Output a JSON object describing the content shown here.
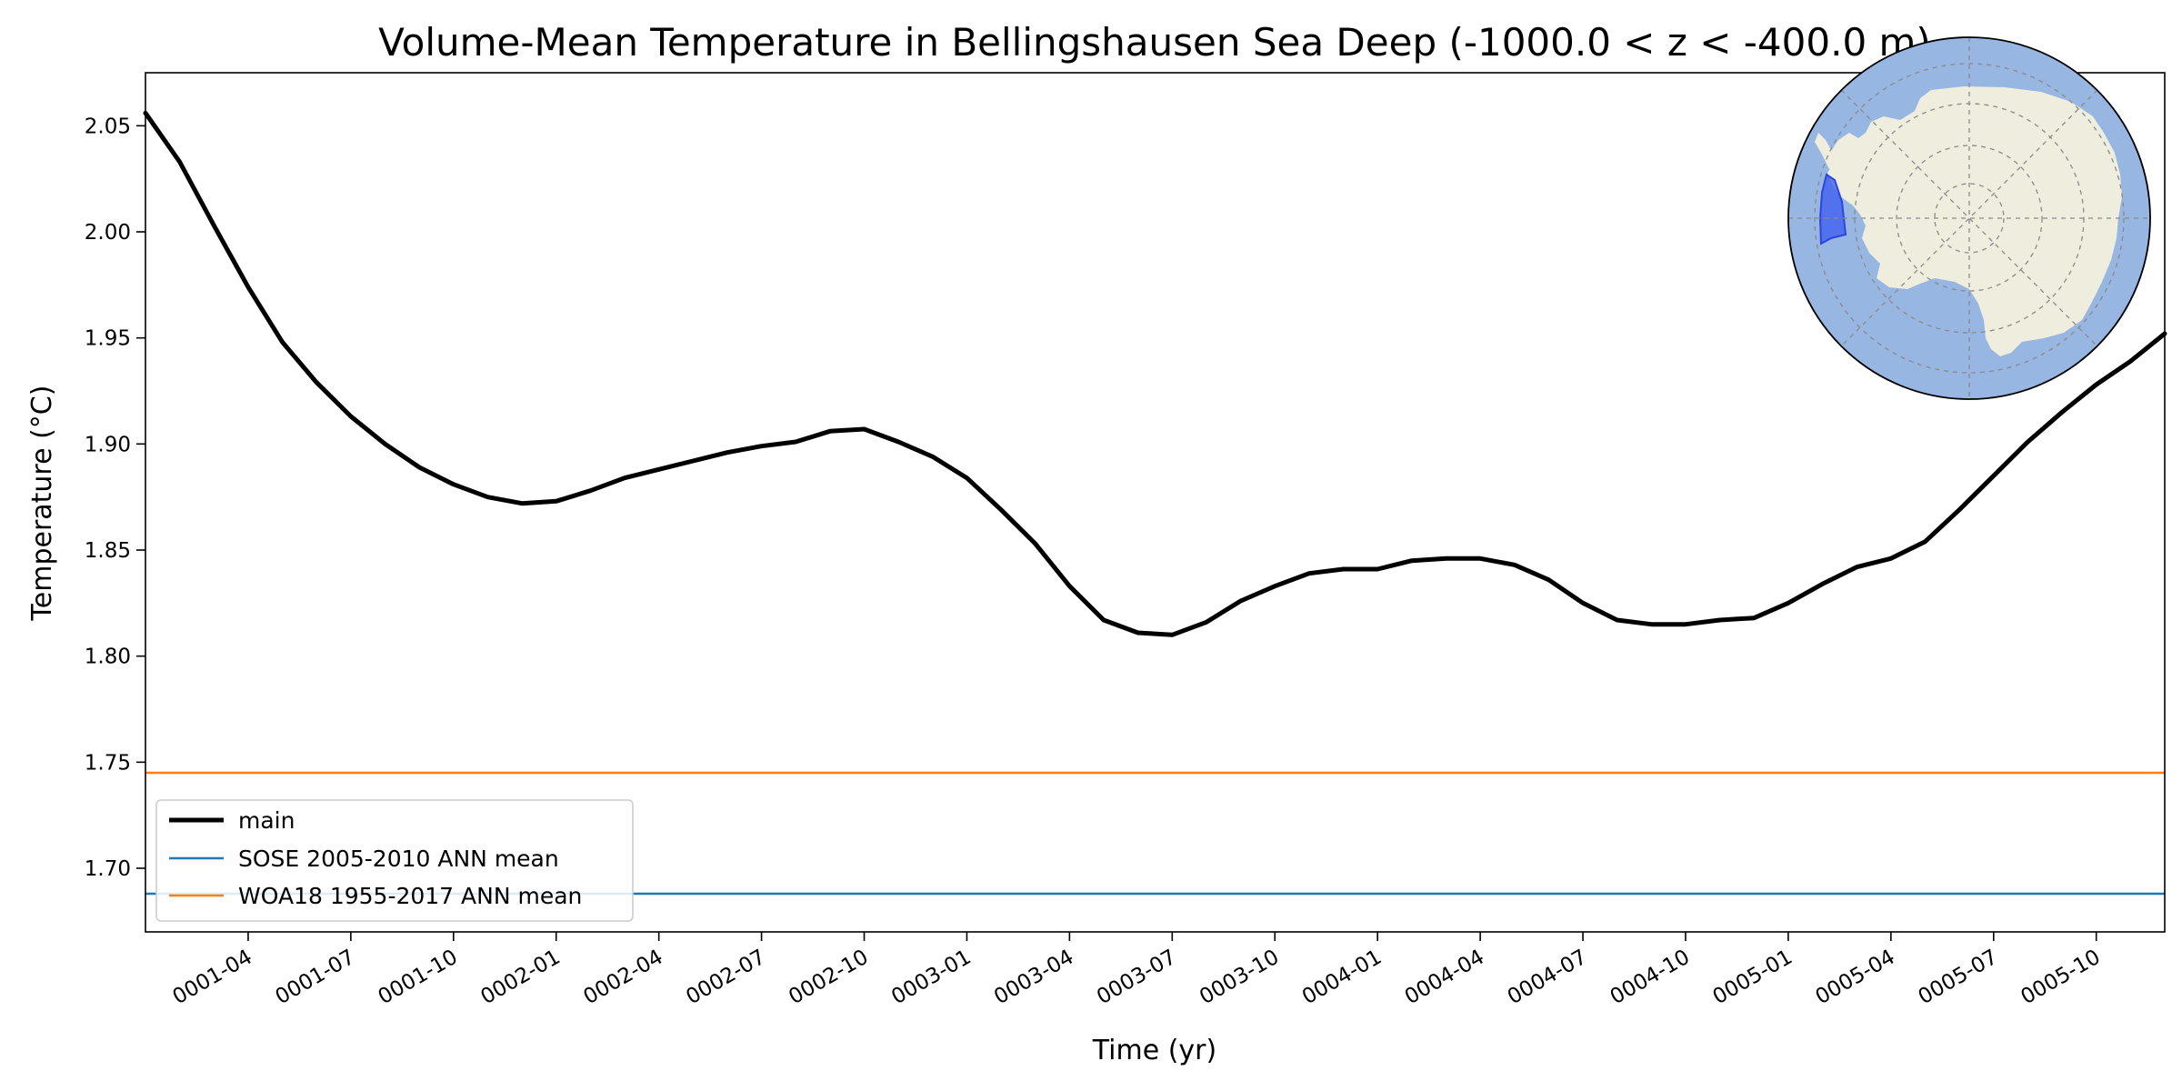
{
  "chart_data": {
    "type": "line",
    "title": "Volume-Mean Temperature in Bellingshausen Sea Deep (-1000.0 < z < -400.0 m)",
    "xlabel": "Time (yr)",
    "ylabel": "Temperature ($^\\circ$C)",
    "ylabel_display": "Temperature (°C)",
    "ylim": [
      1.67,
      2.075
    ],
    "xlim_months": [
      0.0,
      59.0
    ],
    "x_tick_labels": [
      "0001-04",
      "0001-07",
      "0001-10",
      "0002-01",
      "0002-04",
      "0002-07",
      "0002-10",
      "0003-01",
      "0003-04",
      "0003-07",
      "0003-10",
      "0004-01",
      "0004-04",
      "0004-07",
      "0004-10",
      "0005-01",
      "0005-04",
      "0005-07",
      "0005-10"
    ],
    "x_tick_months": [
      3,
      6,
      9,
      12,
      15,
      18,
      21,
      24,
      27,
      30,
      33,
      36,
      39,
      42,
      45,
      48,
      51,
      54,
      57
    ],
    "y_ticks": [
      1.7,
      1.75,
      1.8,
      1.85,
      1.9,
      1.95,
      2.0,
      2.05
    ],
    "y_tick_labels": [
      "1.70",
      "1.75",
      "1.80",
      "1.85",
      "1.90",
      "1.95",
      "2.00",
      "2.05"
    ],
    "series": [
      {
        "name": "main",
        "color": "#000000",
        "x_months": [
          0,
          1,
          2,
          3,
          4,
          5,
          6,
          7,
          8,
          9,
          10,
          11,
          12,
          13,
          14,
          15,
          16,
          17,
          18,
          19,
          20,
          21,
          22,
          23,
          24,
          25,
          26,
          27,
          28,
          29,
          30,
          31,
          32,
          33,
          34,
          35,
          36,
          37,
          38,
          39,
          40,
          41,
          42,
          43,
          44,
          45,
          46,
          47,
          48,
          49,
          50,
          51,
          52,
          53,
          54,
          55,
          56,
          57,
          58,
          59
        ],
        "values": [
          2.056,
          2.033,
          2.003,
          1.974,
          1.948,
          1.929,
          1.913,
          1.9,
          1.889,
          1.881,
          1.875,
          1.872,
          1.873,
          1.878,
          1.884,
          1.888,
          1.892,
          1.896,
          1.899,
          1.901,
          1.906,
          1.907,
          1.901,
          1.894,
          1.884,
          1.869,
          1.853,
          1.833,
          1.817,
          1.811,
          1.81,
          1.816,
          1.826,
          1.833,
          1.839,
          1.841,
          1.841,
          1.845,
          1.846,
          1.846,
          1.843,
          1.836,
          1.825,
          1.817,
          1.815,
          1.815,
          1.817,
          1.818,
          1.825,
          1.834,
          1.842,
          1.846,
          1.854,
          1.869,
          1.885,
          1.901,
          1.915,
          1.928,
          1.939,
          1.952
        ]
      },
      {
        "name": "SOSE 2005-2010 ANN mean",
        "color": "#1f77b4",
        "value": 1.688
      },
      {
        "name": "WOA18 1955-2017 ANN mean",
        "color": "#ff7f0e",
        "value": 1.745
      }
    ],
    "legend": {
      "placement": "lower-left",
      "entries": [
        "main",
        "SOSE 2005-2010 ANN mean",
        "WOA18 1955-2017 ANN mean"
      ]
    },
    "inset_map": {
      "description_label": "Antarctica polar map",
      "ocean_color": "#98b6e2",
      "land_color": "#efedde",
      "region_color": "#3f5ff0"
    }
  }
}
